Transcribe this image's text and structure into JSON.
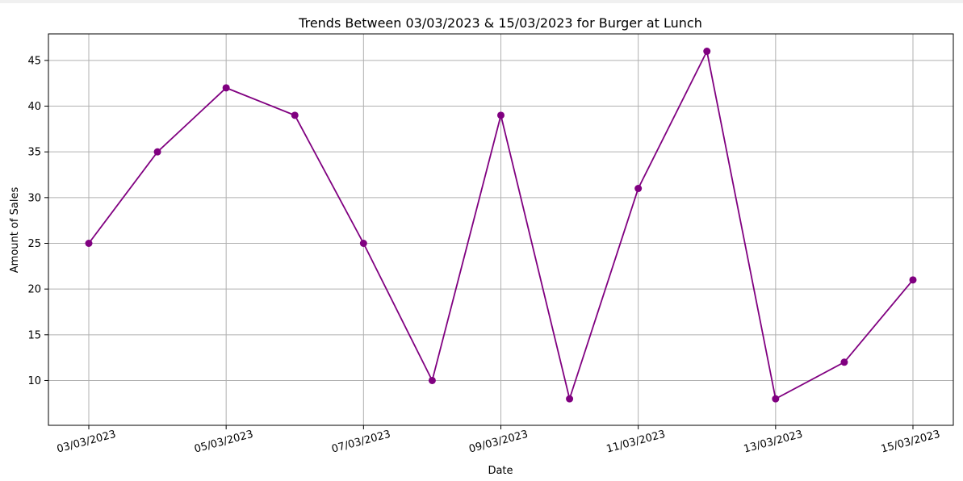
{
  "chart_data": {
    "type": "line",
    "title": "Trends Between 03/03/2023 & 15/03/2023 for Burger at Lunch",
    "xlabel": "Date",
    "ylabel": "Amount of Sales",
    "x": [
      "03/03/2023",
      "04/03/2023",
      "05/03/2023",
      "06/03/2023",
      "07/03/2023",
      "08/03/2023",
      "09/03/2023",
      "10/03/2023",
      "11/03/2023",
      "12/03/2023",
      "13/03/2023",
      "14/03/2023",
      "15/03/2023"
    ],
    "x_tick_labels": [
      "03/03/2023",
      "05/03/2023",
      "07/03/2023",
      "09/03/2023",
      "11/03/2023",
      "13/03/2023",
      "15/03/2023"
    ],
    "y_ticks": [
      10,
      15,
      20,
      25,
      30,
      35,
      40,
      45
    ],
    "series": [
      {
        "values": [
          25,
          35,
          42,
          39,
          25,
          10,
          39,
          8,
          31,
          46,
          8,
          12,
          21
        ],
        "color": "#800080",
        "marker": "circle"
      }
    ],
    "ylim": [
      5.1,
      47.9
    ],
    "grid": true,
    "grid_color": "#b0b0b0"
  }
}
